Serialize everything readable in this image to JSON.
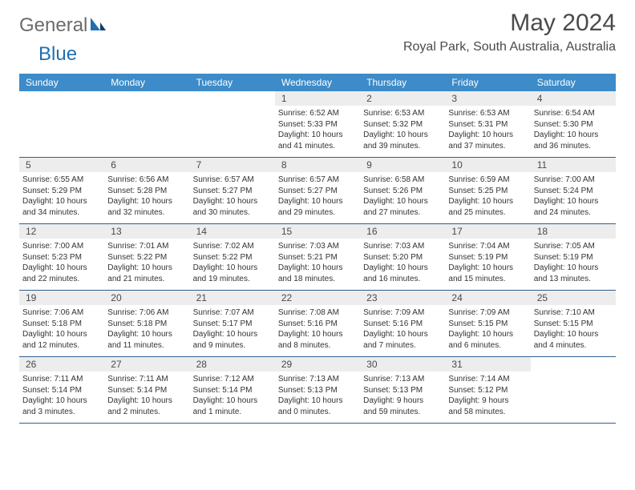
{
  "logo": {
    "word1": "General",
    "word2": "Blue"
  },
  "title": "May 2024",
  "location": "Royal Park, South Australia, Australia",
  "colors": {
    "header_bg": "#3d8bc8",
    "week_border": "#2f5f8f",
    "daynum_bg": "#ededed",
    "text": "#333333",
    "title_text": "#4a4a4a",
    "logo_grey": "#6b6b6b",
    "logo_blue": "#1f6fb2"
  },
  "weekdays": [
    "Sunday",
    "Monday",
    "Tuesday",
    "Wednesday",
    "Thursday",
    "Friday",
    "Saturday"
  ],
  "weeks": [
    [
      null,
      null,
      null,
      {
        "n": "1",
        "sr": "6:52 AM",
        "ss": "5:33 PM",
        "dl1": "Daylight: 10 hours",
        "dl2": "and 41 minutes."
      },
      {
        "n": "2",
        "sr": "6:53 AM",
        "ss": "5:32 PM",
        "dl1": "Daylight: 10 hours",
        "dl2": "and 39 minutes."
      },
      {
        "n": "3",
        "sr": "6:53 AM",
        "ss": "5:31 PM",
        "dl1": "Daylight: 10 hours",
        "dl2": "and 37 minutes."
      },
      {
        "n": "4",
        "sr": "6:54 AM",
        "ss": "5:30 PM",
        "dl1": "Daylight: 10 hours",
        "dl2": "and 36 minutes."
      }
    ],
    [
      {
        "n": "5",
        "sr": "6:55 AM",
        "ss": "5:29 PM",
        "dl1": "Daylight: 10 hours",
        "dl2": "and 34 minutes."
      },
      {
        "n": "6",
        "sr": "6:56 AM",
        "ss": "5:28 PM",
        "dl1": "Daylight: 10 hours",
        "dl2": "and 32 minutes."
      },
      {
        "n": "7",
        "sr": "6:57 AM",
        "ss": "5:27 PM",
        "dl1": "Daylight: 10 hours",
        "dl2": "and 30 minutes."
      },
      {
        "n": "8",
        "sr": "6:57 AM",
        "ss": "5:27 PM",
        "dl1": "Daylight: 10 hours",
        "dl2": "and 29 minutes."
      },
      {
        "n": "9",
        "sr": "6:58 AM",
        "ss": "5:26 PM",
        "dl1": "Daylight: 10 hours",
        "dl2": "and 27 minutes."
      },
      {
        "n": "10",
        "sr": "6:59 AM",
        "ss": "5:25 PM",
        "dl1": "Daylight: 10 hours",
        "dl2": "and 25 minutes."
      },
      {
        "n": "11",
        "sr": "7:00 AM",
        "ss": "5:24 PM",
        "dl1": "Daylight: 10 hours",
        "dl2": "and 24 minutes."
      }
    ],
    [
      {
        "n": "12",
        "sr": "7:00 AM",
        "ss": "5:23 PM",
        "dl1": "Daylight: 10 hours",
        "dl2": "and 22 minutes."
      },
      {
        "n": "13",
        "sr": "7:01 AM",
        "ss": "5:22 PM",
        "dl1": "Daylight: 10 hours",
        "dl2": "and 21 minutes."
      },
      {
        "n": "14",
        "sr": "7:02 AM",
        "ss": "5:22 PM",
        "dl1": "Daylight: 10 hours",
        "dl2": "and 19 minutes."
      },
      {
        "n": "15",
        "sr": "7:03 AM",
        "ss": "5:21 PM",
        "dl1": "Daylight: 10 hours",
        "dl2": "and 18 minutes."
      },
      {
        "n": "16",
        "sr": "7:03 AM",
        "ss": "5:20 PM",
        "dl1": "Daylight: 10 hours",
        "dl2": "and 16 minutes."
      },
      {
        "n": "17",
        "sr": "7:04 AM",
        "ss": "5:19 PM",
        "dl1": "Daylight: 10 hours",
        "dl2": "and 15 minutes."
      },
      {
        "n": "18",
        "sr": "7:05 AM",
        "ss": "5:19 PM",
        "dl1": "Daylight: 10 hours",
        "dl2": "and 13 minutes."
      }
    ],
    [
      {
        "n": "19",
        "sr": "7:06 AM",
        "ss": "5:18 PM",
        "dl1": "Daylight: 10 hours",
        "dl2": "and 12 minutes."
      },
      {
        "n": "20",
        "sr": "7:06 AM",
        "ss": "5:18 PM",
        "dl1": "Daylight: 10 hours",
        "dl2": "and 11 minutes."
      },
      {
        "n": "21",
        "sr": "7:07 AM",
        "ss": "5:17 PM",
        "dl1": "Daylight: 10 hours",
        "dl2": "and 9 minutes."
      },
      {
        "n": "22",
        "sr": "7:08 AM",
        "ss": "5:16 PM",
        "dl1": "Daylight: 10 hours",
        "dl2": "and 8 minutes."
      },
      {
        "n": "23",
        "sr": "7:09 AM",
        "ss": "5:16 PM",
        "dl1": "Daylight: 10 hours",
        "dl2": "and 7 minutes."
      },
      {
        "n": "24",
        "sr": "7:09 AM",
        "ss": "5:15 PM",
        "dl1": "Daylight: 10 hours",
        "dl2": "and 6 minutes."
      },
      {
        "n": "25",
        "sr": "7:10 AM",
        "ss": "5:15 PM",
        "dl1": "Daylight: 10 hours",
        "dl2": "and 4 minutes."
      }
    ],
    [
      {
        "n": "26",
        "sr": "7:11 AM",
        "ss": "5:14 PM",
        "dl1": "Daylight: 10 hours",
        "dl2": "and 3 minutes."
      },
      {
        "n": "27",
        "sr": "7:11 AM",
        "ss": "5:14 PM",
        "dl1": "Daylight: 10 hours",
        "dl2": "and 2 minutes."
      },
      {
        "n": "28",
        "sr": "7:12 AM",
        "ss": "5:14 PM",
        "dl1": "Daylight: 10 hours",
        "dl2": "and 1 minute."
      },
      {
        "n": "29",
        "sr": "7:13 AM",
        "ss": "5:13 PM",
        "dl1": "Daylight: 10 hours",
        "dl2": "and 0 minutes."
      },
      {
        "n": "30",
        "sr": "7:13 AM",
        "ss": "5:13 PM",
        "dl1": "Daylight: 9 hours",
        "dl2": "and 59 minutes."
      },
      {
        "n": "31",
        "sr": "7:14 AM",
        "ss": "5:12 PM",
        "dl1": "Daylight: 9 hours",
        "dl2": "and 58 minutes."
      },
      null
    ]
  ],
  "labels": {
    "sunrise": "Sunrise: ",
    "sunset": "Sunset: "
  }
}
